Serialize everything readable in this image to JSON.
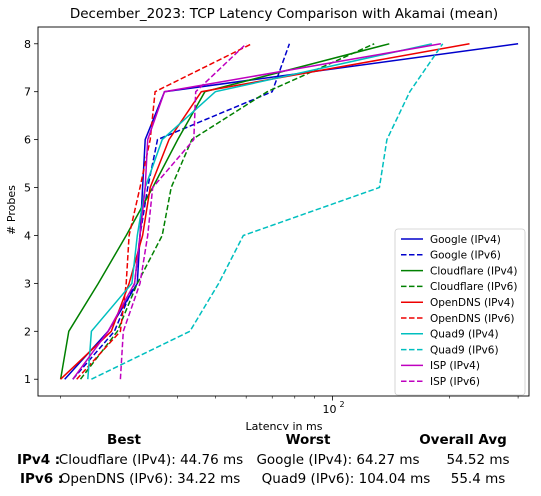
{
  "chart_data": {
    "type": "line",
    "title": "December_2023: TCP Latency Comparison with Akamai (mean)",
    "xlabel": "Latency in ms",
    "ylabel": "# Probes",
    "x_scale": "log",
    "xlim": [
      17.5,
      320
    ],
    "ylim": [
      0.65,
      8.35
    ],
    "x_tick_labels": [
      {
        "value": 100,
        "label": "10^2"
      }
    ],
    "y_ticks": [
      1,
      2,
      3,
      4,
      5,
      6,
      7,
      8
    ],
    "grid": false,
    "legend_position": "lower-right",
    "series": [
      {
        "name": "Google (IPv4)",
        "color": "#0000cc",
        "dash": "solid",
        "points": [
          [
            20.5,
            1
          ],
          [
            26.5,
            2
          ],
          [
            31.5,
            3
          ],
          [
            32,
            4
          ],
          [
            32.5,
            5
          ],
          [
            33,
            6
          ],
          [
            37,
            7
          ],
          [
            300,
            8
          ]
        ]
      },
      {
        "name": "Google (IPv6)",
        "color": "#0000cc",
        "dash": "dashed",
        "points": [
          [
            21.5,
            1
          ],
          [
            27.5,
            2
          ],
          [
            31,
            3
          ],
          [
            32,
            4
          ],
          [
            33.5,
            5
          ],
          [
            35.5,
            6
          ],
          [
            70,
            7
          ],
          [
            77.5,
            8
          ]
        ]
      },
      {
        "name": "Cloudflare (IPv4)",
        "color": "#008000",
        "dash": "solid",
        "points": [
          [
            20,
            1
          ],
          [
            21,
            2
          ],
          [
            25,
            3
          ],
          [
            29.5,
            4
          ],
          [
            34.5,
            5
          ],
          [
            40,
            6
          ],
          [
            47,
            7
          ],
          [
            140,
            8
          ]
        ]
      },
      {
        "name": "Cloudflare (IPv6)",
        "color": "#008000",
        "dash": "dashed",
        "points": [
          [
            22.5,
            1
          ],
          [
            28,
            2
          ],
          [
            31.5,
            3
          ],
          [
            36.5,
            4
          ],
          [
            38.5,
            5
          ],
          [
            43.5,
            6
          ],
          [
            68,
            7
          ],
          [
            128,
            8
          ]
        ]
      },
      {
        "name": "OpenDNS (IPv4)",
        "color": "#ee0000",
        "dash": "solid",
        "points": [
          [
            20,
            1
          ],
          [
            27,
            2
          ],
          [
            30,
            3
          ],
          [
            32.5,
            4
          ],
          [
            34,
            5
          ],
          [
            38,
            6
          ],
          [
            46,
            7
          ],
          [
            225,
            8
          ]
        ]
      },
      {
        "name": "OpenDNS (IPv6)",
        "color": "#ee0000",
        "dash": "dashed",
        "points": [
          [
            22,
            1
          ],
          [
            28.5,
            2
          ],
          [
            29.5,
            3
          ],
          [
            30,
            4
          ],
          [
            32,
            5
          ],
          [
            34,
            6
          ],
          [
            35,
            7
          ],
          [
            62,
            8
          ]
        ]
      },
      {
        "name": "Quad9 (IPv4)",
        "color": "#00bfbf",
        "dash": "solid",
        "points": [
          [
            23.5,
            1
          ],
          [
            24,
            2
          ],
          [
            30.5,
            3
          ],
          [
            31.5,
            4
          ],
          [
            33,
            5
          ],
          [
            36.5,
            6
          ],
          [
            50,
            7
          ],
          [
            180,
            8
          ]
        ]
      },
      {
        "name": "Quad9 (IPv6)",
        "color": "#00bfbf",
        "dash": "dashed",
        "points": [
          [
            24,
            1
          ],
          [
            43,
            2
          ],
          [
            51,
            3
          ],
          [
            59,
            4
          ],
          [
            132,
            5
          ],
          [
            138,
            6
          ],
          [
            158,
            7
          ],
          [
            192,
            8
          ]
        ]
      },
      {
        "name": "ISP (IPv4)",
        "color": "#bf00bf",
        "dash": "solid",
        "points": [
          [
            21.5,
            1
          ],
          [
            26.5,
            2
          ],
          [
            31,
            3
          ],
          [
            32,
            4
          ],
          [
            33,
            5
          ],
          [
            33.5,
            6
          ],
          [
            37,
            7
          ],
          [
            190,
            8
          ]
        ]
      },
      {
        "name": "ISP (IPv6)",
        "color": "#bf00bf",
        "dash": "dashed",
        "points": [
          [
            28.5,
            1
          ],
          [
            29,
            2
          ],
          [
            32,
            3
          ],
          [
            33.5,
            4
          ],
          [
            34.5,
            5
          ],
          [
            44,
            6
          ],
          [
            44.5,
            7
          ],
          [
            60,
            8
          ]
        ]
      }
    ]
  },
  "summary": {
    "headers": {
      "best": "Best",
      "worst": "Worst",
      "avg": "Overall Avg"
    },
    "rows": [
      {
        "label": "IPv4 :",
        "best": "Cloudflare (IPv4): 44.76 ms",
        "worst": "Google (IPv4): 64.27 ms",
        "avg": "54.52 ms"
      },
      {
        "label": "IPv6 :",
        "best": "OpenDNS (IPv6): 34.22 ms",
        "worst": "Quad9 (IPv6): 104.04 ms",
        "avg": "55.4 ms"
      }
    ]
  }
}
